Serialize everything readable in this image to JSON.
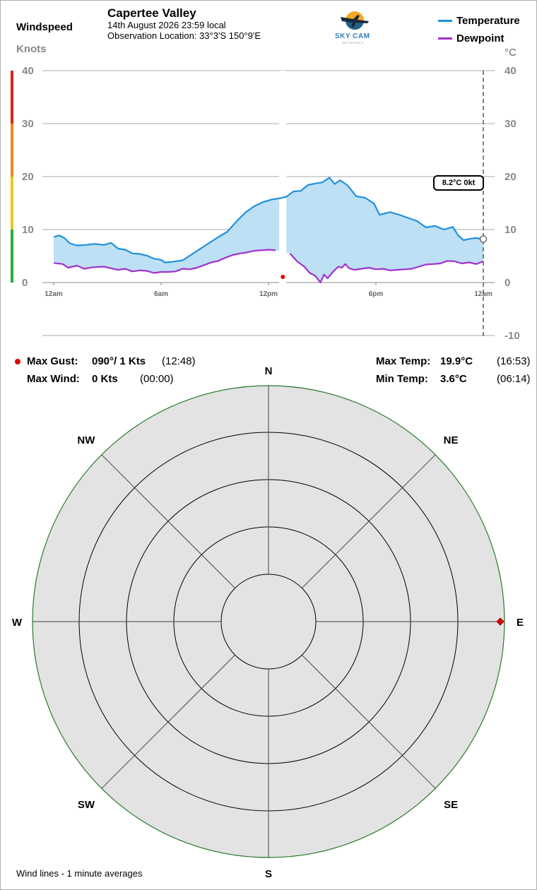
{
  "header": {
    "windspeed_label": "Windspeed",
    "knots_label": "Knots",
    "celsius_label": "°C",
    "station_name": "Capertee Valley",
    "datetime": "14th August 2026  23:59 local",
    "location": "Observation Location: 33°3'S 150°9'E",
    "logo_text": "SKY CAM",
    "logo_subtext": "NETWORKS"
  },
  "legend": {
    "temperature_label": "Temperature",
    "dewpoint_label": "Dewpoint"
  },
  "current": {
    "label": "8.2°C  0kt"
  },
  "stats": {
    "max_gust_label": "Max Gust:",
    "max_gust_value": "090°/ 1 Kts",
    "max_gust_time": "(12:48)",
    "max_wind_label": "Max Wind:",
    "max_wind_value": "0 Kts",
    "max_wind_time": "(00:00)",
    "max_temp_label": "Max Temp:",
    "max_temp_value": "19.9°C",
    "max_temp_time": "(16:53)",
    "min_temp_label": "Min Temp:",
    "min_temp_value": "3.6°C",
    "min_temp_time": "(06:14)"
  },
  "rose": {
    "directions": [
      {
        "label": "N",
        "deg": 0
      },
      {
        "label": "NE",
        "deg": 45
      },
      {
        "label": "E",
        "deg": 90
      },
      {
        "label": "SE",
        "deg": 135
      },
      {
        "label": "S",
        "deg": 180
      },
      {
        "label": "SW",
        "deg": 225
      },
      {
        "label": "W",
        "deg": 270
      },
      {
        "label": "NW",
        "deg": 315
      }
    ],
    "gust_marker": {
      "direction_deg": 90,
      "speed_kt": 1
    }
  },
  "footer": {
    "note": "Wind lines - 1 minute averages"
  },
  "colors": {
    "temperature": "#1e90dc",
    "dewpoint": "#a030d0",
    "fill": "#bde0f5",
    "gust": "#e00000",
    "rose_bg": "#e3e3e3",
    "wind_scale": [
      "#20b040",
      "#e8c820",
      "#f08a20",
      "#e02020"
    ]
  },
  "chart_data": {
    "type": "line",
    "x_unit": "hours since midnight",
    "x_ticks": [
      {
        "label": "12am",
        "h": 0
      },
      {
        "label": "6am",
        "h": 6
      },
      {
        "label": "12pm",
        "h": 12
      },
      {
        "label": "6pm",
        "h": 18
      },
      {
        "label": "12am",
        "h": 24
      }
    ],
    "xlim": [
      0,
      24
    ],
    "left_axis": {
      "label": "Knots",
      "ticks": [
        0,
        10,
        20,
        30,
        40
      ],
      "range": [
        0,
        40
      ]
    },
    "right_axis": {
      "label": "°C",
      "ticks": [
        -10,
        0,
        10,
        20,
        30,
        40
      ],
      "range": [
        -10,
        40
      ]
    },
    "grid": true,
    "gap_hours": [
      [
        12.6,
        13.0
      ]
    ],
    "series": [
      {
        "name": "Temperature",
        "axis": "right",
        "points": [
          [
            0,
            8.6
          ],
          [
            0.3,
            8.9
          ],
          [
            0.6,
            8.4
          ],
          [
            0.9,
            7.4
          ],
          [
            1.3,
            7.0
          ],
          [
            1.8,
            7.1
          ],
          [
            2.3,
            7.3
          ],
          [
            2.8,
            7.1
          ],
          [
            3.2,
            7.5
          ],
          [
            3.6,
            6.4
          ],
          [
            4.0,
            6.2
          ],
          [
            4.4,
            5.5
          ],
          [
            4.8,
            5.4
          ],
          [
            5.2,
            5.1
          ],
          [
            5.6,
            4.5
          ],
          [
            6.0,
            4.3
          ],
          [
            6.2,
            3.8
          ],
          [
            6.6,
            3.9
          ],
          [
            7.2,
            4.2
          ],
          [
            7.7,
            5.3
          ],
          [
            8.2,
            6.4
          ],
          [
            8.7,
            7.5
          ],
          [
            9.2,
            8.6
          ],
          [
            9.7,
            9.6
          ],
          [
            10.2,
            11.5
          ],
          [
            10.7,
            13.2
          ],
          [
            11.2,
            14.4
          ],
          [
            11.7,
            15.2
          ],
          [
            12.2,
            15.7
          ],
          [
            12.6,
            15.9
          ],
          [
            13.0,
            16.2
          ],
          [
            13.4,
            17.2
          ],
          [
            13.8,
            17.3
          ],
          [
            14.2,
            18.4
          ],
          [
            14.6,
            18.7
          ],
          [
            15.0,
            18.9
          ],
          [
            15.4,
            19.8
          ],
          [
            15.7,
            18.6
          ],
          [
            16.0,
            19.3
          ],
          [
            16.4,
            18.4
          ],
          [
            16.9,
            16.3
          ],
          [
            17.4,
            16.0
          ],
          [
            17.9,
            14.9
          ],
          [
            18.2,
            12.8
          ],
          [
            18.8,
            13.3
          ],
          [
            19.3,
            12.8
          ],
          [
            19.8,
            12.2
          ],
          [
            20.3,
            11.6
          ],
          [
            20.8,
            10.4
          ],
          [
            21.3,
            10.7
          ],
          [
            21.8,
            10.0
          ],
          [
            22.3,
            10.5
          ],
          [
            22.6,
            8.9
          ],
          [
            22.9,
            8.0
          ],
          [
            23.3,
            8.3
          ],
          [
            23.6,
            8.4
          ],
          [
            24,
            8.2
          ]
        ]
      },
      {
        "name": "Dewpoint",
        "axis": "right",
        "points": [
          [
            0,
            3.7
          ],
          [
            0.5,
            3.5
          ],
          [
            0.8,
            2.8
          ],
          [
            1.3,
            3.2
          ],
          [
            1.7,
            2.6
          ],
          [
            2.2,
            2.9
          ],
          [
            2.8,
            3.0
          ],
          [
            3.2,
            2.7
          ],
          [
            3.6,
            2.4
          ],
          [
            4.0,
            2.6
          ],
          [
            4.4,
            2.1
          ],
          [
            4.8,
            2.3
          ],
          [
            5.2,
            2.2
          ],
          [
            5.6,
            1.8
          ],
          [
            6.0,
            2.0
          ],
          [
            6.4,
            2.0
          ],
          [
            6.8,
            2.1
          ],
          [
            7.2,
            2.6
          ],
          [
            7.6,
            2.5
          ],
          [
            8.0,
            2.8
          ],
          [
            8.4,
            3.3
          ],
          [
            8.8,
            3.8
          ],
          [
            9.2,
            4.1
          ],
          [
            9.6,
            4.7
          ],
          [
            10.0,
            5.2
          ],
          [
            10.4,
            5.5
          ],
          [
            10.8,
            5.7
          ],
          [
            11.2,
            6.0
          ],
          [
            11.6,
            6.1
          ],
          [
            12.0,
            6.2
          ],
          [
            12.4,
            6.1
          ],
          [
            12.8,
            5.8
          ],
          [
            13.2,
            5.5
          ],
          [
            13.6,
            4.0
          ],
          [
            14.0,
            3.0
          ],
          [
            14.3,
            1.8
          ],
          [
            14.6,
            1.3
          ],
          [
            14.9,
            0.0
          ],
          [
            15.1,
            1.5
          ],
          [
            15.3,
            0.8
          ],
          [
            15.6,
            2.0
          ],
          [
            15.9,
            3.0
          ],
          [
            16.1,
            2.8
          ],
          [
            16.3,
            3.5
          ],
          [
            16.5,
            2.7
          ],
          [
            16.8,
            2.4
          ],
          [
            17.2,
            2.6
          ],
          [
            17.6,
            2.8
          ],
          [
            18.0,
            2.5
          ],
          [
            18.4,
            2.6
          ],
          [
            18.8,
            2.3
          ],
          [
            19.2,
            2.4
          ],
          [
            19.6,
            2.5
          ],
          [
            20.0,
            2.6
          ],
          [
            20.4,
            3.0
          ],
          [
            20.8,
            3.4
          ],
          [
            21.2,
            3.5
          ],
          [
            21.6,
            3.6
          ],
          [
            22.0,
            4.1
          ],
          [
            22.4,
            4.0
          ],
          [
            22.8,
            3.6
          ],
          [
            23.2,
            3.8
          ],
          [
            23.6,
            3.5
          ],
          [
            24,
            4.0
          ]
        ]
      }
    ],
    "gust_points": [
      {
        "h": 12.8,
        "kt": 1
      }
    ],
    "current": {
      "h": 24,
      "temp_c": 8.2,
      "wind_kt": 0
    }
  }
}
